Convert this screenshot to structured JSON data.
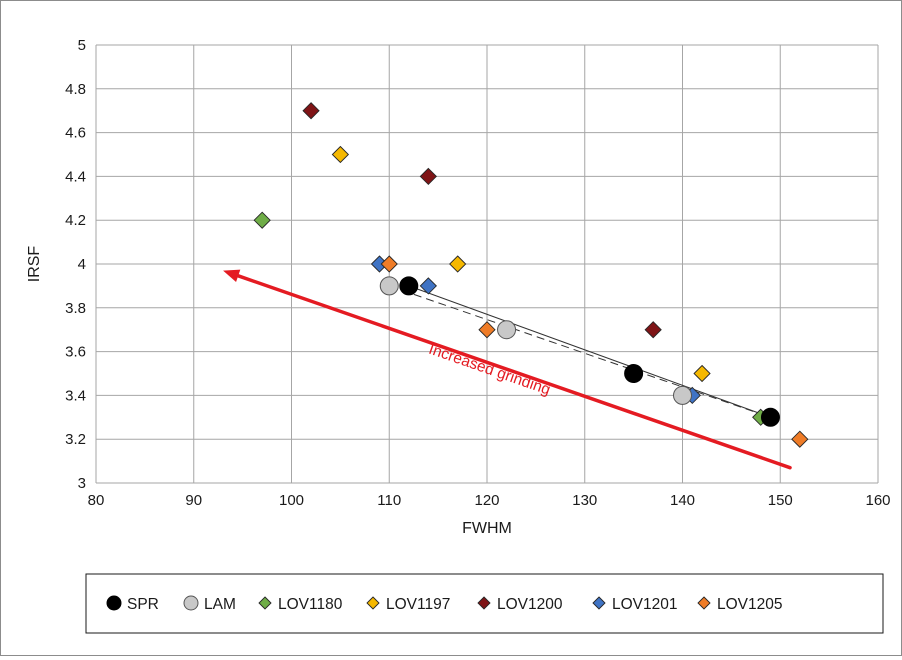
{
  "chart_data": {
    "type": "scatter",
    "xlabel": "FWHM",
    "ylabel": "IRSF",
    "xlim": [
      80,
      160
    ],
    "ylim": [
      3,
      5
    ],
    "x_ticks": [
      80,
      90,
      100,
      110,
      120,
      130,
      140,
      150,
      160
    ],
    "y_ticks": [
      3,
      3.2,
      3.4,
      3.6,
      3.8,
      4,
      4.2,
      4.4,
      4.6,
      4.8,
      5
    ],
    "grid": true,
    "legend_position": "bottom",
    "series": [
      {
        "name": "SPR",
        "marker": "circle",
        "color": "#000000",
        "points": [
          [
            112,
            3.9
          ],
          [
            135,
            3.5
          ],
          [
            149,
            3.3
          ]
        ]
      },
      {
        "name": "LAM",
        "marker": "circle",
        "color": "#c8c8c8",
        "points": [
          [
            110,
            3.9
          ],
          [
            122,
            3.7
          ],
          [
            140,
            3.4
          ]
        ]
      },
      {
        "name": "LOV1180",
        "marker": "diamond",
        "color": "#6fad47",
        "points": [
          [
            97,
            4.2
          ],
          [
            122,
            3.7
          ],
          [
            148,
            3.3
          ]
        ]
      },
      {
        "name": "LOV1197",
        "marker": "diamond",
        "color": "#f5b800",
        "points": [
          [
            105,
            4.5
          ],
          [
            117,
            4.0
          ],
          [
            142,
            3.5
          ]
        ]
      },
      {
        "name": "LOV1200",
        "marker": "diamond",
        "color": "#7f1416",
        "points": [
          [
            102,
            4.7
          ],
          [
            114,
            4.4
          ],
          [
            137,
            3.7
          ]
        ]
      },
      {
        "name": "LOV1201",
        "marker": "diamond",
        "color": "#3f73c4",
        "points": [
          [
            109,
            4.0
          ],
          [
            114,
            3.9
          ],
          [
            141,
            3.4
          ]
        ]
      },
      {
        "name": "LOV1205",
        "marker": "diamond",
        "color": "#ef7c27",
        "points": [
          [
            110,
            4.0
          ],
          [
            120,
            3.7
          ],
          [
            152,
            3.2
          ]
        ]
      }
    ],
    "fit_lines": [
      {
        "series": "SPR",
        "style": "solid",
        "points": [
          [
            112,
            3.9
          ],
          [
            149,
            3.3
          ]
        ]
      },
      {
        "series": "LAM",
        "style": "dashed",
        "points": [
          [
            110,
            3.9
          ],
          [
            149,
            3.3
          ]
        ]
      }
    ],
    "annotations": [
      {
        "text": "Increased grinding",
        "color": "#e41b22",
        "arrow_from": [
          151,
          3.07
        ],
        "arrow_to": [
          93,
          3.97
        ]
      }
    ]
  }
}
